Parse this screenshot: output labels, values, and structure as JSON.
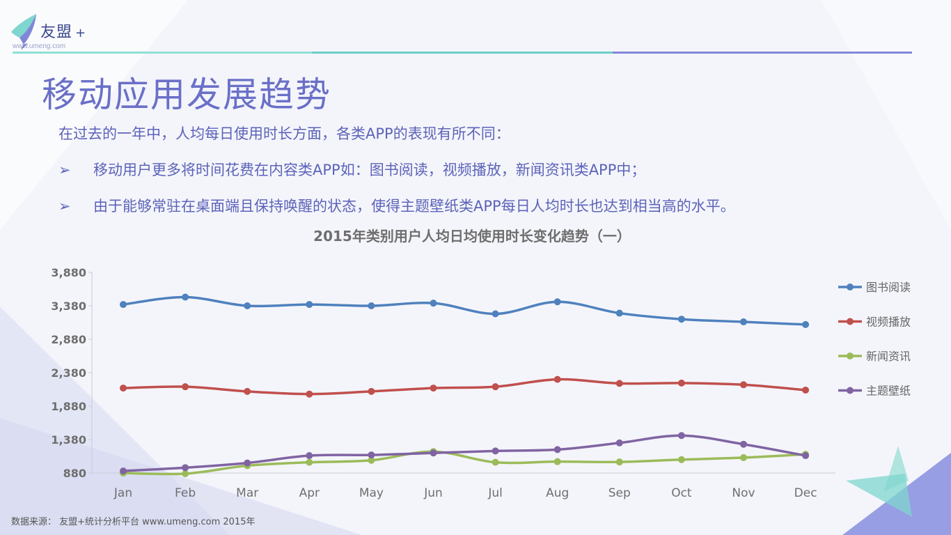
{
  "logo": {
    "brand": "友盟",
    "plus": "+",
    "url": "www.umeng.com"
  },
  "page": {
    "title": "移动应用发展趋势",
    "intro": "在过去的一年中，人均每日使用时长方面，各类APP的表现有所不同：",
    "bullets": [
      "移动用户更多将时间花费在内容类APP如：图书阅读，视频播放，新闻资讯类APP中；",
      "由于能够常驻在桌面端且保持唤醒的状态，使得主题壁纸类APP每日人均时长也达到相当高的水平。"
    ],
    "bullet_marker": "➢"
  },
  "colors": {
    "title": "#6a70c7",
    "text": "#5c63b8",
    "header_line_teal": "#7fd6cf",
    "header_line_purple": "#8087d8"
  },
  "source": "数据来源： 友盟+统计分析平台 www.umeng.com 2015年",
  "chart_data": {
    "type": "line",
    "title": "2015年类别用户人均日均使用时长变化趋势（一）",
    "categories": [
      "Jan",
      "Feb",
      "Mar",
      "Apr",
      "May",
      "Jun",
      "Jul",
      "Aug",
      "Sep",
      "Oct",
      "Nov",
      "Dec"
    ],
    "yticks": [
      "880",
      "1,380",
      "1,880",
      "2,380",
      "2,880",
      "3,380",
      "3,880"
    ],
    "ylim": [
      880,
      3880
    ],
    "legend_position": "right",
    "grid": false,
    "series": [
      {
        "name": "图书阅读",
        "color": "#4f81bd",
        "values": [
          3400,
          3510,
          3380,
          3400,
          3380,
          3420,
          3260,
          3440,
          3270,
          3180,
          3140,
          3100
        ]
      },
      {
        "name": "视频播放",
        "color": "#c0504d",
        "values": [
          2150,
          2170,
          2100,
          2060,
          2100,
          2150,
          2170,
          2280,
          2220,
          2225,
          2200,
          2120
        ]
      },
      {
        "name": "新闻资讯",
        "color": "#9bbb59",
        "values": [
          880,
          870,
          990,
          1040,
          1070,
          1200,
          1040,
          1050,
          1045,
          1080,
          1110,
          1160
        ]
      },
      {
        "name": "主题壁纸",
        "color": "#8064a2",
        "values": [
          910,
          960,
          1030,
          1140,
          1150,
          1180,
          1210,
          1230,
          1330,
          1440,
          1310,
          1140
        ]
      }
    ]
  }
}
